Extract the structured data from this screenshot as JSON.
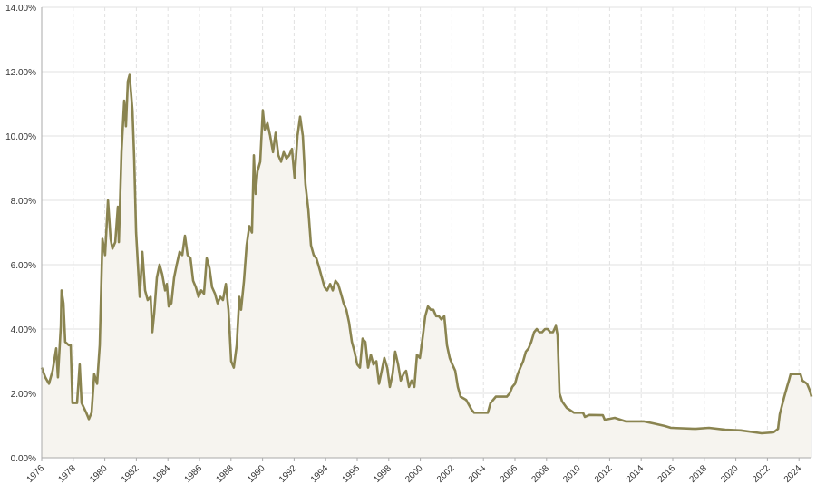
{
  "chart_data": {
    "type": "area",
    "title": "",
    "xlabel": "",
    "ylabel": "",
    "xlim": [
      1976,
      2024.8
    ],
    "ylim": [
      0,
      14
    ],
    "grid": {
      "horizontal": true,
      "vertical": true,
      "vertical_style": "dashed"
    },
    "y_ticks": [
      "0.00%",
      "2.00%",
      "4.00%",
      "6.00%",
      "8.00%",
      "10.00%",
      "12.00%",
      "14.00%"
    ],
    "y_tick_values": [
      0,
      2,
      4,
      6,
      8,
      10,
      12,
      14
    ],
    "x_ticks": [
      "1976",
      "1978",
      "1980",
      "1982",
      "1984",
      "1986",
      "1988",
      "1990",
      "1992",
      "1994",
      "1996",
      "1998",
      "2000",
      "2002",
      "2004",
      "2006",
      "2008",
      "2010",
      "2012",
      "2014",
      "2016",
      "2018",
      "2020",
      "2022",
      "2024"
    ],
    "colors": {
      "line": "#8a8450",
      "fill": "#f6f4ef",
      "grid": "#e2e2e2",
      "axis": "#aaaaaa"
    },
    "series": [
      {
        "x": [
          1976.0,
          1976.23,
          1976.46,
          1976.69,
          1976.92,
          1977.03,
          1977.21,
          1977.26,
          1977.38,
          1977.49,
          1977.72,
          1977.84,
          1977.95,
          1978.24,
          1978.41,
          1978.53,
          1978.82,
          1978.99,
          1979.16,
          1979.33,
          1979.51,
          1979.68,
          1979.85,
          1980.02,
          1980.2,
          1980.37,
          1980.48,
          1980.66,
          1980.83,
          1980.89,
          1981.06,
          1981.23,
          1981.34,
          1981.46,
          1981.57,
          1981.75,
          1981.86,
          1981.98,
          1982.21,
          1982.38,
          1982.55,
          1982.72,
          1982.9,
          1983.01,
          1983.13,
          1983.3,
          1983.47,
          1983.64,
          1983.82,
          1983.93,
          1984.05,
          1984.22,
          1984.39,
          1984.56,
          1984.74,
          1984.91,
          1985.08,
          1985.25,
          1985.43,
          1985.6,
          1985.77,
          1985.94,
          1986.11,
          1986.29,
          1986.46,
          1986.63,
          1986.8,
          1986.98,
          1987.15,
          1987.32,
          1987.49,
          1987.67,
          1987.84,
          1988.01,
          1988.18,
          1988.36,
          1988.53,
          1988.64,
          1988.82,
          1988.99,
          1989.16,
          1989.33,
          1989.45,
          1989.56,
          1989.68,
          1989.85,
          1990.02,
          1990.14,
          1990.31,
          1990.48,
          1990.66,
          1990.83,
          1991.0,
          1991.17,
          1991.34,
          1991.52,
          1991.69,
          1991.86,
          1992.03,
          1992.21,
          1992.38,
          1992.55,
          1992.72,
          1992.9,
          1993.07,
          1993.24,
          1993.41,
          1993.59,
          1993.76,
          1993.93,
          1994.1,
          1994.28,
          1994.45,
          1994.62,
          1994.79,
          1994.97,
          1995.14,
          1995.31,
          1995.48,
          1995.66,
          1995.83,
          1996.0,
          1996.17,
          1996.34,
          1996.52,
          1996.69,
          1996.86,
          1997.03,
          1997.21,
          1997.38,
          1997.55,
          1997.72,
          1997.9,
          1998.07,
          1998.24,
          1998.41,
          1998.59,
          1998.76,
          1998.93,
          1999.1,
          1999.28,
          1999.45,
          1999.62,
          1999.79,
          1999.97,
          2000.14,
          2000.31,
          2000.48,
          2000.66,
          2000.83,
          2001.0,
          2001.17,
          2001.34,
          2001.52,
          2001.69,
          2001.86,
          2002.03,
          2002.21,
          2002.38,
          2002.55,
          2002.9,
          2003.24,
          2003.41,
          2004.28,
          2004.45,
          2004.79,
          2005.48,
          2005.66,
          2005.83,
          2006.0,
          2006.17,
          2006.34,
          2006.52,
          2006.69,
          2006.86,
          2007.03,
          2007.21,
          2007.38,
          2007.55,
          2007.72,
          2007.9,
          2008.07,
          2008.24,
          2008.41,
          2008.59,
          2008.7,
          2008.82,
          2008.99,
          2009.28,
          2009.74,
          2010.31,
          2010.43,
          2010.71,
          2011.57,
          2011.69,
          2012.32,
          2013.01,
          2014.16,
          2014.74,
          2015.48,
          2015.89,
          2017.44,
          2018.3,
          2019.33,
          2020.31,
          2021.23,
          2021.63,
          2022.38,
          2022.67,
          2022.78,
          2023.07,
          2023.24,
          2023.36,
          2023.47,
          2024.1,
          2024.22,
          2024.51,
          2024.68,
          2024.8
        ],
        "y": [
          2.8,
          2.5,
          2.3,
          2.7,
          3.4,
          2.5,
          4.1,
          5.2,
          4.8,
          3.6,
          3.5,
          3.5,
          1.7,
          1.7,
          2.9,
          1.7,
          1.4,
          1.2,
          1.4,
          2.6,
          2.3,
          3.5,
          6.8,
          6.3,
          8.0,
          6.8,
          6.5,
          6.7,
          7.8,
          6.7,
          9.5,
          11.1,
          10.3,
          11.7,
          11.9,
          10.8,
          9.3,
          7.0,
          5.0,
          6.4,
          5.2,
          4.9,
          5.0,
          3.9,
          4.5,
          5.6,
          6.0,
          5.7,
          5.2,
          5.4,
          4.7,
          4.8,
          5.6,
          6.0,
          6.4,
          6.3,
          6.9,
          6.3,
          6.2,
          5.5,
          5.3,
          5.0,
          5.2,
          5.1,
          6.2,
          5.9,
          5.3,
          5.1,
          4.8,
          5.0,
          4.9,
          5.4,
          4.6,
          3.0,
          2.8,
          3.5,
          5.0,
          4.6,
          5.5,
          6.6,
          7.2,
          7.0,
          9.4,
          8.2,
          8.9,
          9.2,
          10.8,
          10.2,
          10.4,
          10.0,
          9.5,
          10.1,
          9.4,
          9.2,
          9.5,
          9.3,
          9.4,
          9.6,
          8.7,
          10.0,
          10.6,
          10.0,
          8.5,
          7.7,
          6.6,
          6.3,
          6.2,
          5.9,
          5.6,
          5.3,
          5.2,
          5.4,
          5.2,
          5.5,
          5.4,
          5.1,
          4.8,
          4.6,
          4.2,
          3.6,
          3.3,
          2.9,
          2.8,
          3.7,
          3.6,
          2.8,
          3.2,
          2.9,
          3.0,
          2.3,
          2.7,
          3.1,
          2.8,
          2.2,
          2.6,
          3.3,
          2.9,
          2.4,
          2.6,
          2.7,
          2.2,
          2.4,
          2.2,
          3.2,
          3.1,
          3.7,
          4.4,
          4.7,
          4.6,
          4.6,
          4.4,
          4.4,
          4.3,
          4.4,
          3.5,
          3.1,
          2.9,
          2.7,
          2.2,
          1.9,
          1.8,
          1.5,
          1.4,
          1.4,
          1.7,
          1.9,
          1.9,
          2.0,
          2.2,
          2.3,
          2.6,
          2.8,
          3.0,
          3.3,
          3.4,
          3.6,
          3.9,
          4.0,
          3.9,
          3.9,
          4.0,
          4.0,
          3.9,
          3.9,
          4.1,
          3.8,
          2.0,
          1.75,
          1.55,
          1.4,
          1.4,
          1.27,
          1.33,
          1.32,
          1.18,
          1.24,
          1.13,
          1.13,
          1.07,
          0.99,
          0.93,
          0.9,
          0.93,
          0.87,
          0.85,
          0.79,
          0.76,
          0.79,
          0.9,
          1.35,
          1.9,
          2.2,
          2.4,
          2.6,
          2.6,
          2.4,
          2.3,
          2.1,
          1.9
        ]
      }
    ]
  }
}
